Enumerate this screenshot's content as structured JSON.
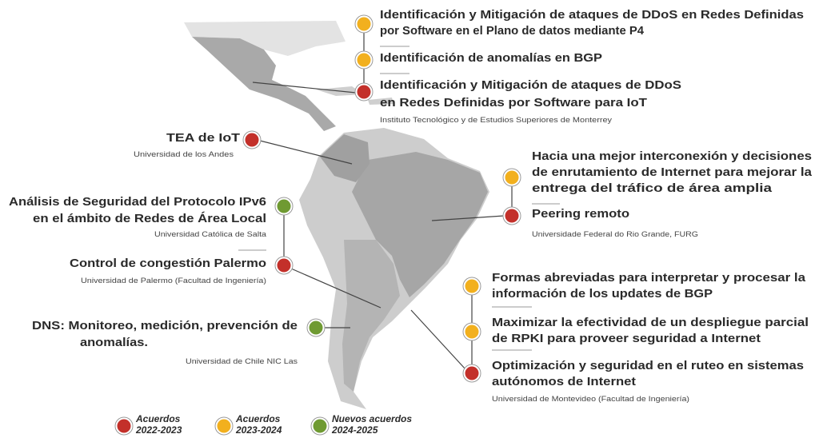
{
  "projects": [
    {
      "title_lines": [
        "Identificación y Mitigación de ataques de DDoS en Redes Definidas",
        "por Software en el Plano de datos mediante P4"
      ],
      "color": "#f2b01e"
    },
    {
      "title_lines": [
        "Identificación de anomalías en BGP"
      ],
      "color": "#f2b01e"
    },
    {
      "title_lines": [
        "Identificación y Mitigación de ataques de DDoS",
        "en Redes Definidas por Software para IoT"
      ],
      "color": "#c3302a",
      "institution": "Instituto Tecnológico y de Estudios Superiores de Monterrey"
    },
    {
      "title_lines": [
        "TEA de IoT"
      ],
      "color": "#c3302a",
      "institution": "Universidad de los Andes"
    },
    {
      "title_lines": [
        "Análisis de Seguridad del Protocolo IPv6",
        "en el ámbito de Redes de Área Local"
      ],
      "color": "#6f9a32",
      "institution": "Universidad Católica de Salta"
    },
    {
      "title_lines": [
        "Control de congestión Palermo"
      ],
      "color": "#c3302a",
      "institution": "Universidad de Palermo (Facultad de Ingeniería)"
    },
    {
      "title_lines": [
        "DNS: Monitoreo, medición, prevención de",
        "anomalías."
      ],
      "color": "#6f9a32",
      "institution": "Universidad de Chile NIC Las"
    },
    {
      "title_lines": [
        "Hacia una mejor interconexión y decisiones",
        "de enrutamiento de Internet para mejorar la",
        "entrega del tráfico de área amplia"
      ],
      "color": "#f2b01e"
    },
    {
      "title_lines": [
        "Peering remoto"
      ],
      "color": "#c3302a",
      "institution": "Universidade Federal do Rio Grande, FURG"
    },
    {
      "title_lines": [
        "Formas abreviadas para interpretar y procesar la",
        "información de los updates de BGP"
      ],
      "color": "#f2b01e"
    },
    {
      "title_lines": [
        "Maximizar la efectividad de un despliegue parcial",
        "de RPKI para proveer seguridad a Internet"
      ],
      "color": "#f2b01e"
    },
    {
      "title_lines": [
        "Optimización y seguridad en el ruteo en sistemas",
        "autónomos de Internet"
      ],
      "color": "#c3302a",
      "institution": "Universidad de Montevideo (Facultad de Ingeniería)"
    }
  ],
  "legend": [
    {
      "lines": [
        "Acuerdos",
        "2022-2023"
      ],
      "color": "#c3302a"
    },
    {
      "lines": [
        "Acuerdos",
        "2023-2024"
      ],
      "color": "#f2b01e"
    },
    {
      "lines": [
        "Nuevos acuerdos",
        "2024-2025"
      ],
      "color": "#6f9a32"
    }
  ]
}
